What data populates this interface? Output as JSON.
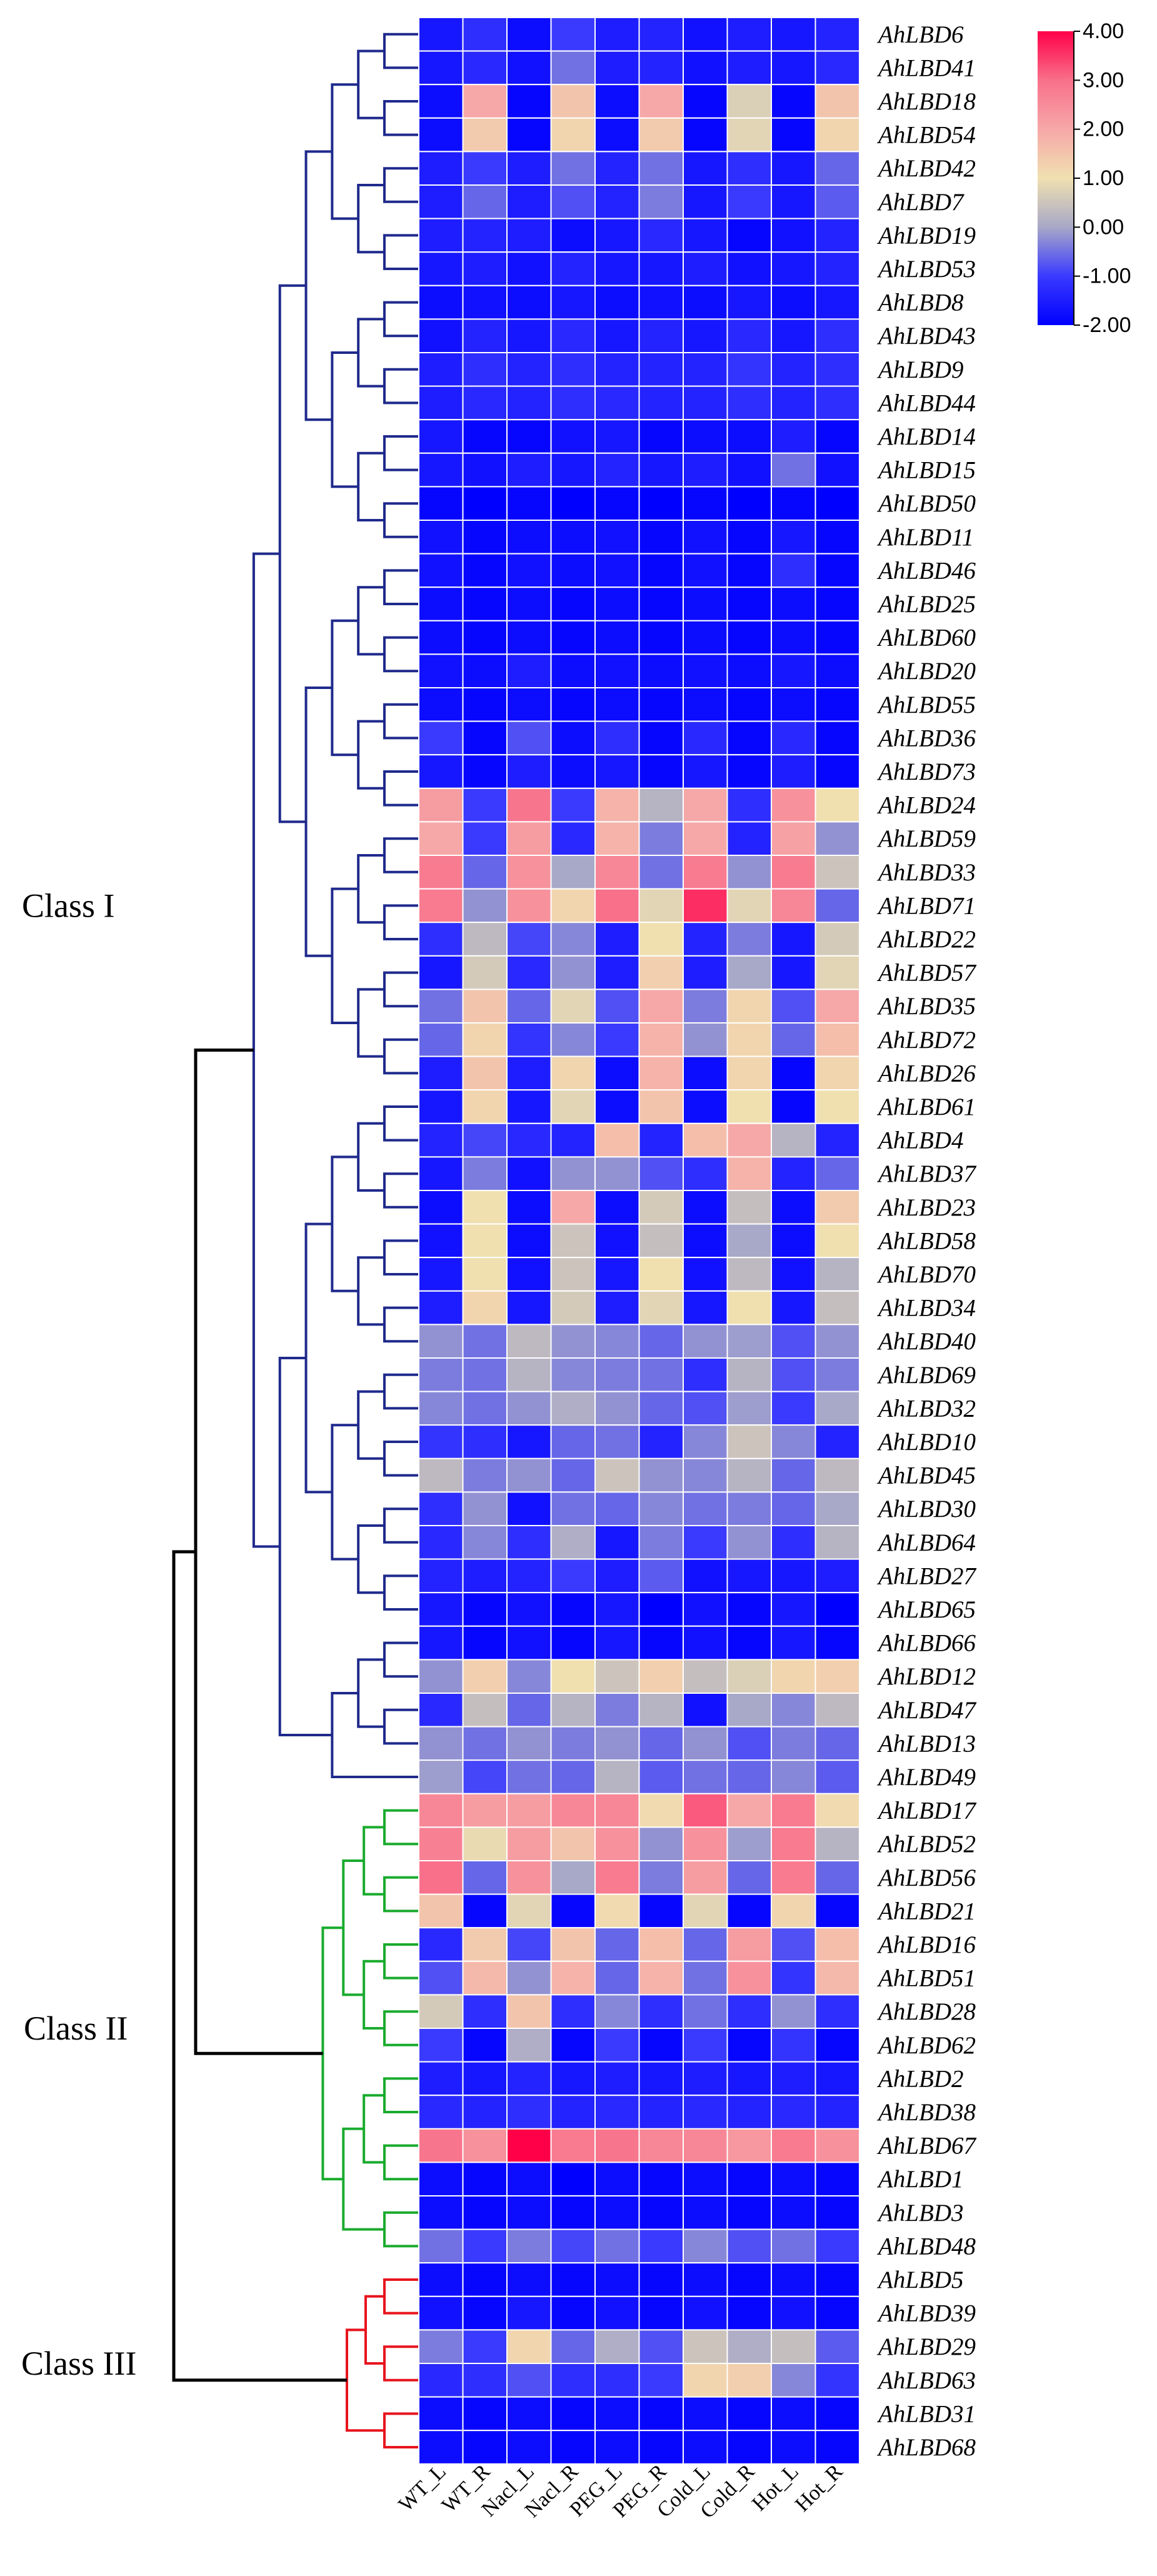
{
  "chart_data": {
    "type": "heatmap",
    "title": "",
    "columns": [
      "WT_L",
      "WT_R",
      "Nacl_L",
      "Nacl_R",
      "PEG_L",
      "PEG_R",
      "Cold_L",
      "Cold_R",
      "Hot_L",
      "Hot_R"
    ],
    "rows": [
      "AhLBD6",
      "AhLBD41",
      "AhLBD18",
      "AhLBD54",
      "AhLBD42",
      "AhLBD7",
      "AhLBD19",
      "AhLBD53",
      "AhLBD8",
      "AhLBD43",
      "AhLBD9",
      "AhLBD44",
      "AhLBD14",
      "AhLBD15",
      "AhLBD50",
      "AhLBD11",
      "AhLBD46",
      "AhLBD25",
      "AhLBD60",
      "AhLBD20",
      "AhLBD55",
      "AhLBD36",
      "AhLBD73",
      "AhLBD24",
      "AhLBD59",
      "AhLBD33",
      "AhLBD71",
      "AhLBD22",
      "AhLBD57",
      "AhLBD35",
      "AhLBD72",
      "AhLBD26",
      "AhLBD61",
      "AhLBD4",
      "AhLBD37",
      "AhLBD23",
      "AhLBD58",
      "AhLBD70",
      "AhLBD34",
      "AhLBD40",
      "AhLBD69",
      "AhLBD32",
      "AhLBD10",
      "AhLBD45",
      "AhLBD30",
      "AhLBD64",
      "AhLBD27",
      "AhLBD65",
      "AhLBD66",
      "AhLBD12",
      "AhLBD47",
      "AhLBD13",
      "AhLBD49",
      "AhLBD17",
      "AhLBD52",
      "AhLBD56",
      "AhLBD21",
      "AhLBD16",
      "AhLBD51",
      "AhLBD28",
      "AhLBD62",
      "AhLBD2",
      "AhLBD38",
      "AhLBD67",
      "AhLBD1",
      "AhLBD3",
      "AhLBD48",
      "AhLBD5",
      "AhLBD39",
      "AhLBD29",
      "AhLBD63",
      "AhLBD31",
      "AhLBD68"
    ],
    "values": [
      [
        -1.6,
        -1.2,
        -1.8,
        -1.0,
        -1.5,
        -1.4,
        -1.7,
        -1.5,
        -1.6,
        -1.4
      ],
      [
        -1.6,
        -1.3,
        -1.7,
        -0.5,
        -1.5,
        -1.4,
        -1.7,
        -1.5,
        -1.6,
        -1.3
      ],
      [
        -1.8,
        2.0,
        -1.9,
        1.5,
        -1.8,
        2.0,
        -1.9,
        0.7,
        -1.9,
        1.5
      ],
      [
        -1.8,
        1.4,
        -1.9,
        1.2,
        -1.8,
        1.4,
        -1.9,
        0.8,
        -1.9,
        1.2
      ],
      [
        -1.5,
        -1.0,
        -1.5,
        -0.5,
        -1.4,
        -0.5,
        -1.6,
        -1.2,
        -1.6,
        -0.6
      ],
      [
        -1.5,
        -0.6,
        -1.5,
        -0.8,
        -1.4,
        -0.4,
        -1.6,
        -1.0,
        -1.6,
        -0.7
      ],
      [
        -1.5,
        -1.4,
        -1.5,
        -1.8,
        -1.6,
        -1.3,
        -1.6,
        -1.9,
        -1.7,
        -1.4
      ],
      [
        -1.6,
        -1.5,
        -1.7,
        -1.4,
        -1.6,
        -1.6,
        -1.5,
        -1.7,
        -1.6,
        -1.4
      ],
      [
        -1.8,
        -1.7,
        -1.8,
        -1.6,
        -1.8,
        -1.7,
        -1.8,
        -1.6,
        -1.8,
        -1.6
      ],
      [
        -1.7,
        -1.4,
        -1.6,
        -1.3,
        -1.6,
        -1.4,
        -1.6,
        -1.3,
        -1.6,
        -1.2
      ],
      [
        -1.5,
        -1.2,
        -1.4,
        -1.2,
        -1.4,
        -1.4,
        -1.4,
        -1.1,
        -1.4,
        -1.2
      ],
      [
        -1.5,
        -1.3,
        -1.4,
        -1.2,
        -1.3,
        -1.4,
        -1.4,
        -1.2,
        -1.4,
        -1.2
      ],
      [
        -1.6,
        -1.9,
        -1.9,
        -1.7,
        -1.6,
        -1.9,
        -1.8,
        -1.8,
        -1.5,
        -1.9
      ],
      [
        -1.6,
        -1.7,
        -1.5,
        -1.6,
        -1.4,
        -1.6,
        -1.5,
        -1.7,
        -0.5,
        -1.7
      ],
      [
        -1.9,
        -2.0,
        -1.9,
        -2.0,
        -1.9,
        -2.0,
        -1.9,
        -2.0,
        -1.9,
        -2.0
      ],
      [
        -1.7,
        -1.9,
        -1.8,
        -1.8,
        -1.7,
        -1.9,
        -1.7,
        -1.9,
        -1.6,
        -1.9
      ],
      [
        -1.7,
        -1.9,
        -1.7,
        -1.8,
        -1.7,
        -1.9,
        -1.7,
        -1.9,
        -1.2,
        -1.9
      ],
      [
        -1.8,
        -1.9,
        -1.8,
        -1.9,
        -1.8,
        -1.9,
        -1.8,
        -1.9,
        -1.8,
        -1.9
      ],
      [
        -1.8,
        -1.9,
        -1.8,
        -1.9,
        -1.8,
        -1.9,
        -1.8,
        -1.9,
        -1.8,
        -1.9
      ],
      [
        -1.7,
        -1.8,
        -1.5,
        -1.8,
        -1.7,
        -1.8,
        -1.7,
        -1.8,
        -1.6,
        -1.8
      ],
      [
        -1.8,
        -1.9,
        -1.8,
        -1.9,
        -1.8,
        -1.9,
        -1.8,
        -1.9,
        -1.8,
        -1.9
      ],
      [
        -1.0,
        -1.9,
        -0.8,
        -1.8,
        -1.2,
        -1.9,
        -1.3,
        -1.9,
        -1.3,
        -1.9
      ],
      [
        -1.6,
        -1.9,
        -1.5,
        -1.8,
        -1.6,
        -1.9,
        -1.6,
        -1.9,
        -1.5,
        -1.9
      ],
      [
        2.2,
        -1.0,
        2.9,
        -1.0,
        1.8,
        0.2,
        2.0,
        -1.2,
        2.4,
        1.0
      ],
      [
        2.0,
        -1.0,
        2.2,
        -1.3,
        1.8,
        -0.4,
        2.0,
        -1.4,
        2.1,
        -0.2
      ],
      [
        2.8,
        -0.6,
        2.4,
        0.0,
        2.6,
        -0.5,
        2.8,
        -0.2,
        2.8,
        0.5
      ],
      [
        2.8,
        -0.2,
        2.4,
        1.2,
        3.0,
        0.8,
        3.6,
        0.8,
        2.6,
        -0.6
      ],
      [
        -1.2,
        0.3,
        -0.9,
        -0.3,
        -1.5,
        1.0,
        -1.4,
        -0.4,
        -1.6,
        0.6
      ],
      [
        -1.6,
        0.6,
        -1.3,
        -0.2,
        -1.5,
        1.3,
        -1.5,
        0.0,
        -1.6,
        0.8
      ],
      [
        -0.5,
        1.5,
        -0.6,
        0.8,
        -0.8,
        2.0,
        -0.4,
        1.2,
        -0.8,
        2.0
      ],
      [
        -0.6,
        1.2,
        -1.1,
        -0.3,
        -1.0,
        1.8,
        -0.2,
        1.2,
        -0.6,
        1.6
      ],
      [
        -1.5,
        1.5,
        -1.5,
        1.2,
        -1.8,
        1.8,
        -1.8,
        1.2,
        -1.9,
        1.2
      ],
      [
        -1.6,
        1.2,
        -1.6,
        0.8,
        -1.8,
        1.5,
        -1.8,
        1.0,
        -1.9,
        1.0
      ],
      [
        -1.4,
        -0.9,
        -1.3,
        -1.4,
        1.6,
        -1.4,
        1.6,
        2.0,
        0.2,
        -1.4
      ],
      [
        -1.6,
        -0.4,
        -1.7,
        -0.2,
        -0.2,
        -0.8,
        -1.2,
        1.8,
        -1.4,
        -0.6
      ],
      [
        -1.8,
        1.0,
        -1.8,
        2.0,
        -1.8,
        0.6,
        -1.8,
        0.4,
        -1.8,
        1.4
      ],
      [
        -1.7,
        1.0,
        -1.8,
        0.5,
        -1.7,
        0.4,
        -1.8,
        0.0,
        -1.8,
        1.0
      ],
      [
        -1.6,
        1.0,
        -1.7,
        0.5,
        -1.6,
        1.0,
        -1.7,
        0.3,
        -1.7,
        0.2
      ],
      [
        -1.5,
        1.2,
        -1.6,
        0.6,
        -1.5,
        0.8,
        -1.6,
        1.0,
        -1.6,
        0.4
      ],
      [
        -0.2,
        -0.5,
        0.3,
        -0.2,
        -0.3,
        -0.6,
        -0.2,
        -0.1,
        -0.8,
        -0.2
      ],
      [
        -0.4,
        -0.5,
        0.2,
        -0.3,
        -0.4,
        -0.5,
        -1.2,
        0.2,
        -0.8,
        -0.4
      ],
      [
        -0.3,
        -0.5,
        -0.2,
        0.1,
        -0.2,
        -0.6,
        -0.8,
        -0.1,
        -1.0,
        0.0
      ],
      [
        -1.1,
        -1.2,
        -1.6,
        -0.6,
        -0.5,
        -1.4,
        -0.3,
        0.5,
        -0.3,
        -1.4
      ],
      [
        0.3,
        -0.4,
        -0.2,
        -0.6,
        0.5,
        -0.2,
        -0.3,
        0.2,
        -0.6,
        0.3
      ],
      [
        -1.2,
        -0.2,
        -1.7,
        -0.5,
        -0.6,
        -0.3,
        -0.5,
        -0.4,
        -0.6,
        0.0
      ],
      [
        -1.3,
        -0.3,
        -1.2,
        0.1,
        -1.6,
        -0.4,
        -1.0,
        -0.2,
        -1.2,
        0.2
      ],
      [
        -1.4,
        -1.5,
        -1.4,
        -1.0,
        -1.5,
        -0.7,
        -1.7,
        -1.6,
        -1.6,
        -1.5
      ],
      [
        -1.6,
        -1.9,
        -1.7,
        -1.9,
        -1.6,
        -2.0,
        -1.7,
        -1.9,
        -1.6,
        -2.0
      ],
      [
        -1.6,
        -1.9,
        -1.7,
        -1.9,
        -1.6,
        -1.9,
        -1.7,
        -1.9,
        -1.6,
        -1.9
      ],
      [
        -0.2,
        1.3,
        -0.3,
        1.0,
        0.5,
        1.3,
        0.4,
        0.7,
        1.2,
        1.3
      ],
      [
        -1.3,
        0.4,
        -0.6,
        0.2,
        -0.4,
        0.2,
        -1.7,
        0.0,
        -0.3,
        0.3
      ],
      [
        -0.2,
        -0.5,
        -0.2,
        -0.4,
        -0.2,
        -0.6,
        -0.2,
        -0.8,
        -0.4,
        -0.6
      ],
      [
        -0.1,
        -0.9,
        -0.5,
        -0.6,
        0.2,
        -0.7,
        -0.5,
        -0.6,
        -0.3,
        -0.7
      ],
      [
        2.6,
        2.2,
        2.2,
        2.6,
        2.6,
        1.1,
        3.2,
        2.0,
        2.8,
        1.1
      ],
      [
        2.7,
        0.9,
        2.2,
        1.5,
        2.4,
        -0.2,
        2.4,
        -0.1,
        2.8,
        0.2
      ],
      [
        3.0,
        -0.6,
        2.4,
        0.0,
        2.8,
        -0.4,
        2.2,
        -0.6,
        2.8,
        -0.6
      ],
      [
        1.5,
        -1.9,
        0.8,
        -1.9,
        1.1,
        -1.9,
        0.8,
        -1.9,
        1.2,
        -1.9
      ],
      [
        -1.3,
        1.4,
        -0.9,
        1.5,
        -0.6,
        1.6,
        -0.6,
        2.2,
        -0.8,
        1.6
      ],
      [
        -0.8,
        1.7,
        -0.2,
        1.8,
        -0.6,
        1.8,
        -0.5,
        2.4,
        -1.1,
        1.7
      ],
      [
        0.6,
        -1.2,
        1.5,
        -1.2,
        -0.3,
        -1.2,
        -0.5,
        -1.2,
        -0.2,
        -1.2
      ],
      [
        -1.0,
        -1.9,
        0.1,
        -1.9,
        -1.0,
        -1.9,
        -1.0,
        -1.9,
        -1.1,
        -1.9
      ],
      [
        -1.5,
        -1.6,
        -1.4,
        -1.6,
        -1.5,
        -1.6,
        -1.5,
        -1.6,
        -1.5,
        -1.6
      ],
      [
        -1.3,
        -1.4,
        -1.2,
        -1.4,
        -1.3,
        -1.4,
        -1.3,
        -1.4,
        -1.3,
        -1.4
      ],
      [
        2.9,
        2.4,
        4.0,
        2.8,
        2.9,
        2.6,
        2.6,
        2.3,
        2.8,
        2.4
      ],
      [
        -1.8,
        -1.9,
        -1.8,
        -2.0,
        -1.8,
        -1.9,
        -1.8,
        -1.9,
        -1.8,
        -1.9
      ],
      [
        -1.8,
        -1.9,
        -1.8,
        -1.9,
        -1.8,
        -1.9,
        -1.8,
        -1.9,
        -1.8,
        -1.9
      ],
      [
        -0.5,
        -1.0,
        -0.4,
        -0.9,
        -0.5,
        -1.0,
        -0.3,
        -0.8,
        -0.5,
        -1.0
      ],
      [
        -1.8,
        -1.9,
        -1.8,
        -1.9,
        -1.8,
        -1.9,
        -1.8,
        -1.9,
        -1.8,
        -1.9
      ],
      [
        -1.7,
        -1.9,
        -1.6,
        -1.9,
        -1.7,
        -1.9,
        -1.7,
        -1.9,
        -1.7,
        -1.9
      ],
      [
        -0.4,
        -1.0,
        1.2,
        -0.6,
        0.1,
        -0.8,
        0.5,
        0.1,
        0.4,
        -0.7
      ],
      [
        -1.3,
        -1.2,
        -0.8,
        -1.2,
        -1.2,
        -1.0,
        1.2,
        1.3,
        -0.3,
        -1.1
      ],
      [
        -1.8,
        -1.9,
        -1.8,
        -1.9,
        -1.8,
        -1.9,
        -1.8,
        -1.9,
        -1.8,
        -1.9
      ],
      [
        -1.8,
        -1.9,
        -1.8,
        -1.9,
        -1.8,
        -1.9,
        -1.8,
        -1.9,
        -1.8,
        -1.9
      ]
    ],
    "colorbar": {
      "range": [
        -2.0,
        4.0
      ],
      "tick_values": [
        4,
        3,
        2,
        1,
        0,
        -1,
        -2
      ],
      "tick_labels": [
        "4.00",
        "3.00",
        "2.00",
        "1.00",
        "0.00",
        "-1.00",
        "-2.00"
      ],
      "colors": [
        {
          "value": -2.0,
          "color": "#0000ff"
        },
        {
          "value": -1.0,
          "color": "#3a3aff"
        },
        {
          "value": 0.0,
          "color": "#a8a8c8"
        },
        {
          "value": 1.0,
          "color": "#f0e0b0"
        },
        {
          "value": 2.0,
          "color": "#f6a8a8"
        },
        {
          "value": 3.0,
          "color": "#f8708a"
        },
        {
          "value": 4.0,
          "color": "#ff0048"
        }
      ]
    },
    "classes": [
      {
        "name": "Class I",
        "color": "#1f2a8c",
        "first_row": 0,
        "last_row": 52
      },
      {
        "name": "Class II",
        "color": "#1aab2e",
        "first_row": 53,
        "last_row": 66
      },
      {
        "name": "Class III",
        "color": "#e8141e",
        "first_row": 67,
        "last_row": 72
      }
    ]
  }
}
